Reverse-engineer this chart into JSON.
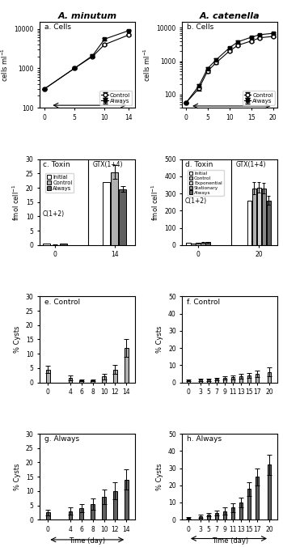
{
  "title_left": "A. minutum",
  "title_right": "A. catenella",
  "am_cells_control_x": [
    0,
    5,
    8,
    10,
    14
  ],
  "am_cells_control_y": [
    300,
    1000,
    2000,
    4000,
    7000
  ],
  "am_cells_control_err": [
    0,
    0,
    150,
    200,
    300
  ],
  "am_cells_always_x": [
    0,
    5,
    8,
    10,
    14
  ],
  "am_cells_always_y": [
    300,
    1000,
    2100,
    5500,
    9000
  ],
  "am_cells_always_err": [
    0,
    50,
    150,
    350,
    200
  ],
  "ac_cells_control_x": [
    0,
    3,
    5,
    7,
    10,
    12,
    15,
    17,
    20
  ],
  "ac_cells_control_y": [
    55,
    150,
    500,
    900,
    2000,
    3000,
    4000,
    5000,
    5500
  ],
  "ac_cells_control_err": [
    0,
    20,
    50,
    100,
    150,
    200,
    250,
    300,
    300
  ],
  "ac_cells_always_x": [
    0,
    3,
    5,
    7,
    10,
    12,
    15,
    17,
    20
  ],
  "ac_cells_always_y": [
    55,
    180,
    600,
    1100,
    2500,
    3800,
    5200,
    6200,
    6800
  ],
  "ac_cells_always_err": [
    0,
    25,
    60,
    120,
    200,
    250,
    300,
    350,
    300
  ],
  "am_toxin_initial_c12": 0.5,
  "am_toxin_control_c12": 0.05,
  "am_toxin_always_c12": 0.55,
  "am_toxin_control_c12_err": 0.05,
  "am_toxin_always_c12_err": 0.1,
  "am_toxin_initial_gtx": 22.0,
  "am_toxin_control_gtx": 25.5,
  "am_toxin_always_gtx": 19.5,
  "am_toxin_control_gtx_err": 2.5,
  "am_toxin_always_gtx_err": 1.0,
  "ac_toxin_initial_c12": 15.0,
  "ac_toxin_control_c12": 8.0,
  "ac_toxin_exponential_c12": 12.0,
  "ac_toxin_stationary_c12": 14.0,
  "ac_toxin_always_c12": 16.0,
  "ac_toxin_control_c12_err": 1.5,
  "ac_toxin_exponential_c12_err": 2.0,
  "ac_toxin_stationary_c12_err": 2.0,
  "ac_toxin_always_c12_err": 2.5,
  "ac_toxin_initial_gtx": 260.0,
  "ac_toxin_control_gtx": 330.0,
  "ac_toxin_exponential_gtx": 335.0,
  "ac_toxin_stationary_gtx": 330.0,
  "ac_toxin_always_gtx": 260.0,
  "ac_toxin_control_gtx_err": 35.0,
  "ac_toxin_exponential_gtx_err": 30.0,
  "ac_toxin_stationary_gtx_err": 30.0,
  "ac_toxin_always_gtx_err": 25.0,
  "am_control_cyst_x": [
    0,
    4,
    6,
    8,
    10,
    12,
    14
  ],
  "am_control_cyst_y": [
    4.5,
    1.5,
    0.7,
    0.7,
    2.0,
    4.5,
    12.0
  ],
  "am_control_cyst_err": [
    1.2,
    0.8,
    0.4,
    0.4,
    1.0,
    1.5,
    3.0
  ],
  "am_always_cyst_x": [
    0,
    4,
    6,
    8,
    10,
    12,
    14
  ],
  "am_always_cyst_y": [
    2.5,
    3.0,
    4.0,
    5.5,
    8.0,
    10.0,
    14.0
  ],
  "am_always_cyst_err": [
    1.0,
    1.2,
    1.5,
    2.0,
    2.5,
    3.0,
    3.5
  ],
  "ac_control_cyst_x": [
    0,
    3,
    5,
    7,
    9,
    11,
    13,
    15,
    17,
    20
  ],
  "ac_control_cyst_y": [
    1.0,
    1.5,
    1.5,
    2.0,
    2.5,
    3.0,
    3.5,
    4.0,
    5.0,
    6.0
  ],
  "ac_control_cyst_err": [
    0.5,
    0.6,
    0.6,
    0.8,
    1.0,
    1.2,
    1.5,
    1.5,
    2.0,
    2.5
  ],
  "ac_always_cyst_x": [
    0,
    3,
    5,
    7,
    9,
    11,
    13,
    15,
    17,
    20
  ],
  "ac_always_cyst_y": [
    1.0,
    2.0,
    3.0,
    4.0,
    5.0,
    7.0,
    10.0,
    18.0,
    25.0,
    32.0
  ],
  "ac_always_cyst_err": [
    0.5,
    0.8,
    1.0,
    1.5,
    2.0,
    2.5,
    3.0,
    4.0,
    5.0,
    6.0
  ],
  "bar_color_initial": "#ffffff",
  "bar_color_control": "#b0b0b0",
  "bar_color_exponential": "#d0d0d0",
  "bar_color_stationary": "#888888",
  "bar_color_always": "#606060",
  "bar_edgecolor": "#000000"
}
